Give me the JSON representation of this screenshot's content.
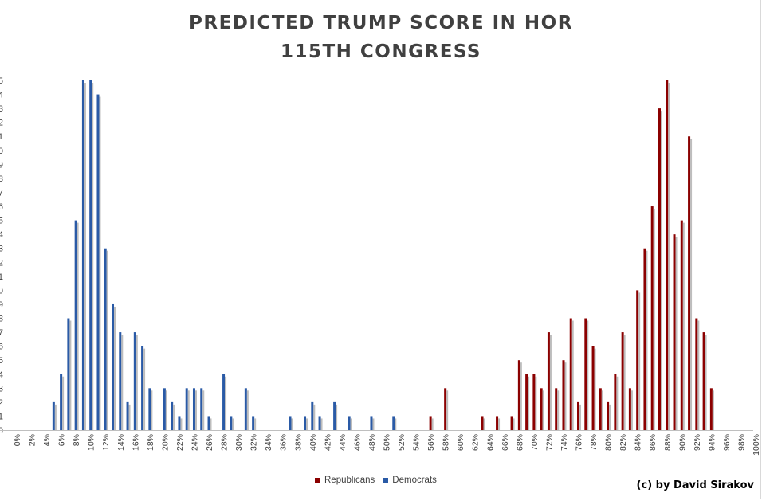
{
  "title": {
    "line1": "PREDICTED TRUMP SCORE IN HOR",
    "line2": "115TH CONGRESS"
  },
  "copyright": "(c) by David Sirakov",
  "colors": {
    "republicans": "#8b0000",
    "democrats": "#2a5aa6",
    "axis": "#bfbfbf",
    "text": "#404040"
  },
  "chart_data": {
    "type": "bar",
    "title": "PREDICTED TRUMP SCORE IN HOR 115TH CONGRESS",
    "xlabel": "",
    "ylabel": "",
    "ylim": [
      0,
      25
    ],
    "grid": false,
    "legend_position": "bottom",
    "x_ticks": [
      "0%",
      "2%",
      "4%",
      "6%",
      "8%",
      "10%",
      "12%",
      "14%",
      "16%",
      "18%",
      "20%",
      "22%",
      "24%",
      "26%",
      "28%",
      "30%",
      "32%",
      "34%",
      "36%",
      "38%",
      "40%",
      "42%",
      "44%",
      "46%",
      "48%",
      "50%",
      "52%",
      "54%",
      "56%",
      "58%",
      "60%",
      "62%",
      "64%",
      "66%",
      "68%",
      "70%",
      "72%",
      "74%",
      "76%",
      "78%",
      "80%",
      "82%",
      "84%",
      "86%",
      "88%",
      "90%",
      "92%",
      "94%",
      "96%",
      "98%",
      "100%"
    ],
    "series": [
      {
        "name": "Republicans",
        "color": "#8b0000",
        "points": [
          [
            56,
            1
          ],
          [
            58,
            3
          ],
          [
            63,
            1
          ],
          [
            65,
            1
          ],
          [
            67,
            1
          ],
          [
            68,
            5
          ],
          [
            69,
            4
          ],
          [
            70,
            4
          ],
          [
            71,
            3
          ],
          [
            72,
            7
          ],
          [
            73,
            3
          ],
          [
            74,
            5
          ],
          [
            75,
            8
          ],
          [
            76,
            2
          ],
          [
            77,
            8
          ],
          [
            78,
            6
          ],
          [
            79,
            3
          ],
          [
            80,
            2
          ],
          [
            81,
            4
          ],
          [
            82,
            7
          ],
          [
            83,
            3
          ],
          [
            84,
            10
          ],
          [
            85,
            13
          ],
          [
            86,
            16
          ],
          [
            87,
            23
          ],
          [
            88,
            25
          ],
          [
            89,
            14
          ],
          [
            90,
            15
          ],
          [
            91,
            21
          ],
          [
            92,
            8
          ],
          [
            93,
            7
          ],
          [
            94,
            3
          ]
        ]
      },
      {
        "name": "Democrats",
        "color": "#2a5aa6",
        "points": [
          [
            5,
            2
          ],
          [
            6,
            4
          ],
          [
            7,
            8
          ],
          [
            8,
            15
          ],
          [
            9,
            25
          ],
          [
            10,
            25
          ],
          [
            11,
            24
          ],
          [
            12,
            13
          ],
          [
            13,
            9
          ],
          [
            14,
            7
          ],
          [
            15,
            2
          ],
          [
            16,
            7
          ],
          [
            17,
            6
          ],
          [
            18,
            3
          ],
          [
            20,
            3
          ],
          [
            21,
            2
          ],
          [
            22,
            1
          ],
          [
            23,
            3
          ],
          [
            24,
            3
          ],
          [
            25,
            3
          ],
          [
            26,
            1
          ],
          [
            28,
            4
          ],
          [
            29,
            1
          ],
          [
            31,
            3
          ],
          [
            32,
            1
          ],
          [
            37,
            1
          ],
          [
            39,
            1
          ],
          [
            40,
            2
          ],
          [
            41,
            1
          ],
          [
            43,
            2
          ],
          [
            45,
            1
          ],
          [
            48,
            1
          ],
          [
            51,
            1
          ]
        ]
      }
    ]
  }
}
